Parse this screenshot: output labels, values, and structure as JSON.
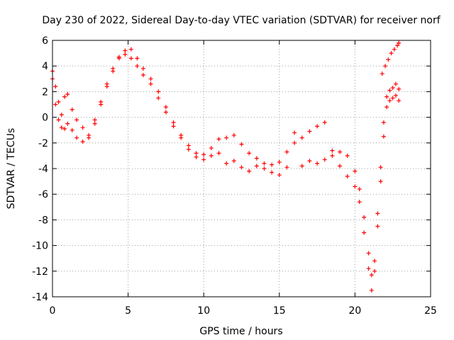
{
  "colors": {
    "series": "#ff0000",
    "grid": "#a0a0a0",
    "axis": "#000000",
    "background": "#ffffff"
  },
  "chart_data": {
    "type": "scatter",
    "title": "Day 230 of 2022, Sidereal Day-to-day VTEC variation (SDTVAR) for receiver norf",
    "xlabel": "GPS time / hours",
    "ylabel": "SDTVAR / TECUs",
    "xlim": [
      0,
      25
    ],
    "ylim": [
      -14,
      6
    ],
    "xticks": [
      "0",
      "5",
      "10",
      "15",
      "20",
      "25"
    ],
    "yticks": [
      "-14",
      "-12",
      "-10",
      "-8",
      "-6",
      "-4",
      "-2",
      "0",
      "2",
      "4",
      "6"
    ],
    "grid": true,
    "marker": "+",
    "series": [
      {
        "x": [
          0.0,
          0.2,
          0.4,
          0.6,
          0.8,
          1.0,
          1.3,
          1.6,
          2.0,
          2.4,
          2.8,
          3.2,
          3.6,
          4.0,
          4.4,
          4.8,
          5.2,
          5.6,
          6.0,
          6.5,
          7.0,
          7.5,
          8.0,
          8.5,
          9.0,
          9.5,
          10.0,
          10.5,
          11.0,
          11.5,
          12.0,
          12.5,
          13.0,
          13.5,
          14.0,
          14.5,
          15.0,
          15.5,
          16.0,
          16.5,
          17.0,
          17.5,
          18.0,
          18.5,
          19.0,
          19.5,
          20.0,
          20.3,
          20.6,
          20.9,
          21.1,
          21.3,
          21.5,
          21.7,
          21.9,
          22.1,
          22.3,
          22.5,
          22.7,
          22.9
        ],
        "y": [
          3.0,
          1.0,
          -0.2,
          -0.8,
          -0.9,
          -0.5,
          -1.0,
          -1.6,
          -1.9,
          -1.4,
          -0.2,
          1.2,
          2.6,
          3.8,
          4.7,
          4.9,
          4.6,
          4.0,
          3.3,
          2.6,
          1.5,
          0.4,
          -0.7,
          -1.6,
          -2.5,
          -3.1,
          -3.3,
          -3.0,
          -2.8,
          -3.6,
          -3.4,
          -3.9,
          -4.2,
          -3.8,
          -4.0,
          -4.3,
          -4.5,
          -3.9,
          -2.0,
          -3.8,
          -3.4,
          -3.6,
          -3.3,
          -3.0,
          -3.8,
          -4.6,
          -5.4,
          -6.6,
          -9.0,
          -11.8,
          -13.5,
          -12.0,
          -8.5,
          -5.0,
          -1.5,
          0.8,
          1.3,
          1.5,
          1.7,
          1.3
        ]
      },
      {
        "x": [
          0.0,
          0.2,
          0.4,
          0.6,
          0.8,
          1.0,
          1.3,
          1.6,
          2.0,
          2.4,
          2.8,
          3.2,
          3.6,
          4.0,
          4.4,
          4.8,
          5.2,
          5.6,
          6.0,
          6.5,
          7.0,
          7.5,
          8.0,
          8.5,
          9.0,
          9.5,
          10.0,
          10.5,
          11.0,
          11.5,
          12.0,
          12.5,
          13.0,
          13.5,
          14.0,
          14.5,
          15.0,
          15.5,
          16.0,
          16.5,
          17.0,
          17.5,
          18.0,
          18.5,
          19.0,
          19.5,
          20.0,
          20.3,
          20.6,
          20.9,
          21.1,
          21.3,
          21.5,
          21.7,
          21.9,
          22.1,
          22.3,
          22.5,
          22.7,
          22.9
        ],
        "y": [
          3.6,
          2.4,
          1.2,
          0.2,
          1.6,
          1.8,
          0.6,
          -0.2,
          -0.8,
          -1.6,
          -0.5,
          1.0,
          2.4,
          3.6,
          4.6,
          5.2,
          5.3,
          4.6,
          3.8,
          3.0,
          2.0,
          0.8,
          -0.4,
          -1.4,
          -2.2,
          -2.8,
          -2.9,
          -2.4,
          -1.7,
          -1.6,
          -1.4,
          -2.1,
          -2.8,
          -3.2,
          -3.6,
          -3.7,
          -3.5,
          -2.7,
          -1.2,
          -1.6,
          -1.1,
          -0.7,
          -0.4,
          -2.6,
          -2.7,
          -3.0,
          -4.2,
          -5.6,
          -7.8,
          -10.6,
          -12.3,
          -11.2,
          -7.5,
          -3.9,
          -0.4,
          1.6,
          2.1,
          2.3,
          2.6,
          2.2
        ]
      },
      {
        "x": [
          21.8,
          22.0,
          22.2,
          22.4,
          22.6,
          22.8,
          22.9
        ],
        "y": [
          3.4,
          4.0,
          4.5,
          5.0,
          5.3,
          5.6,
          5.8
        ]
      }
    ]
  }
}
